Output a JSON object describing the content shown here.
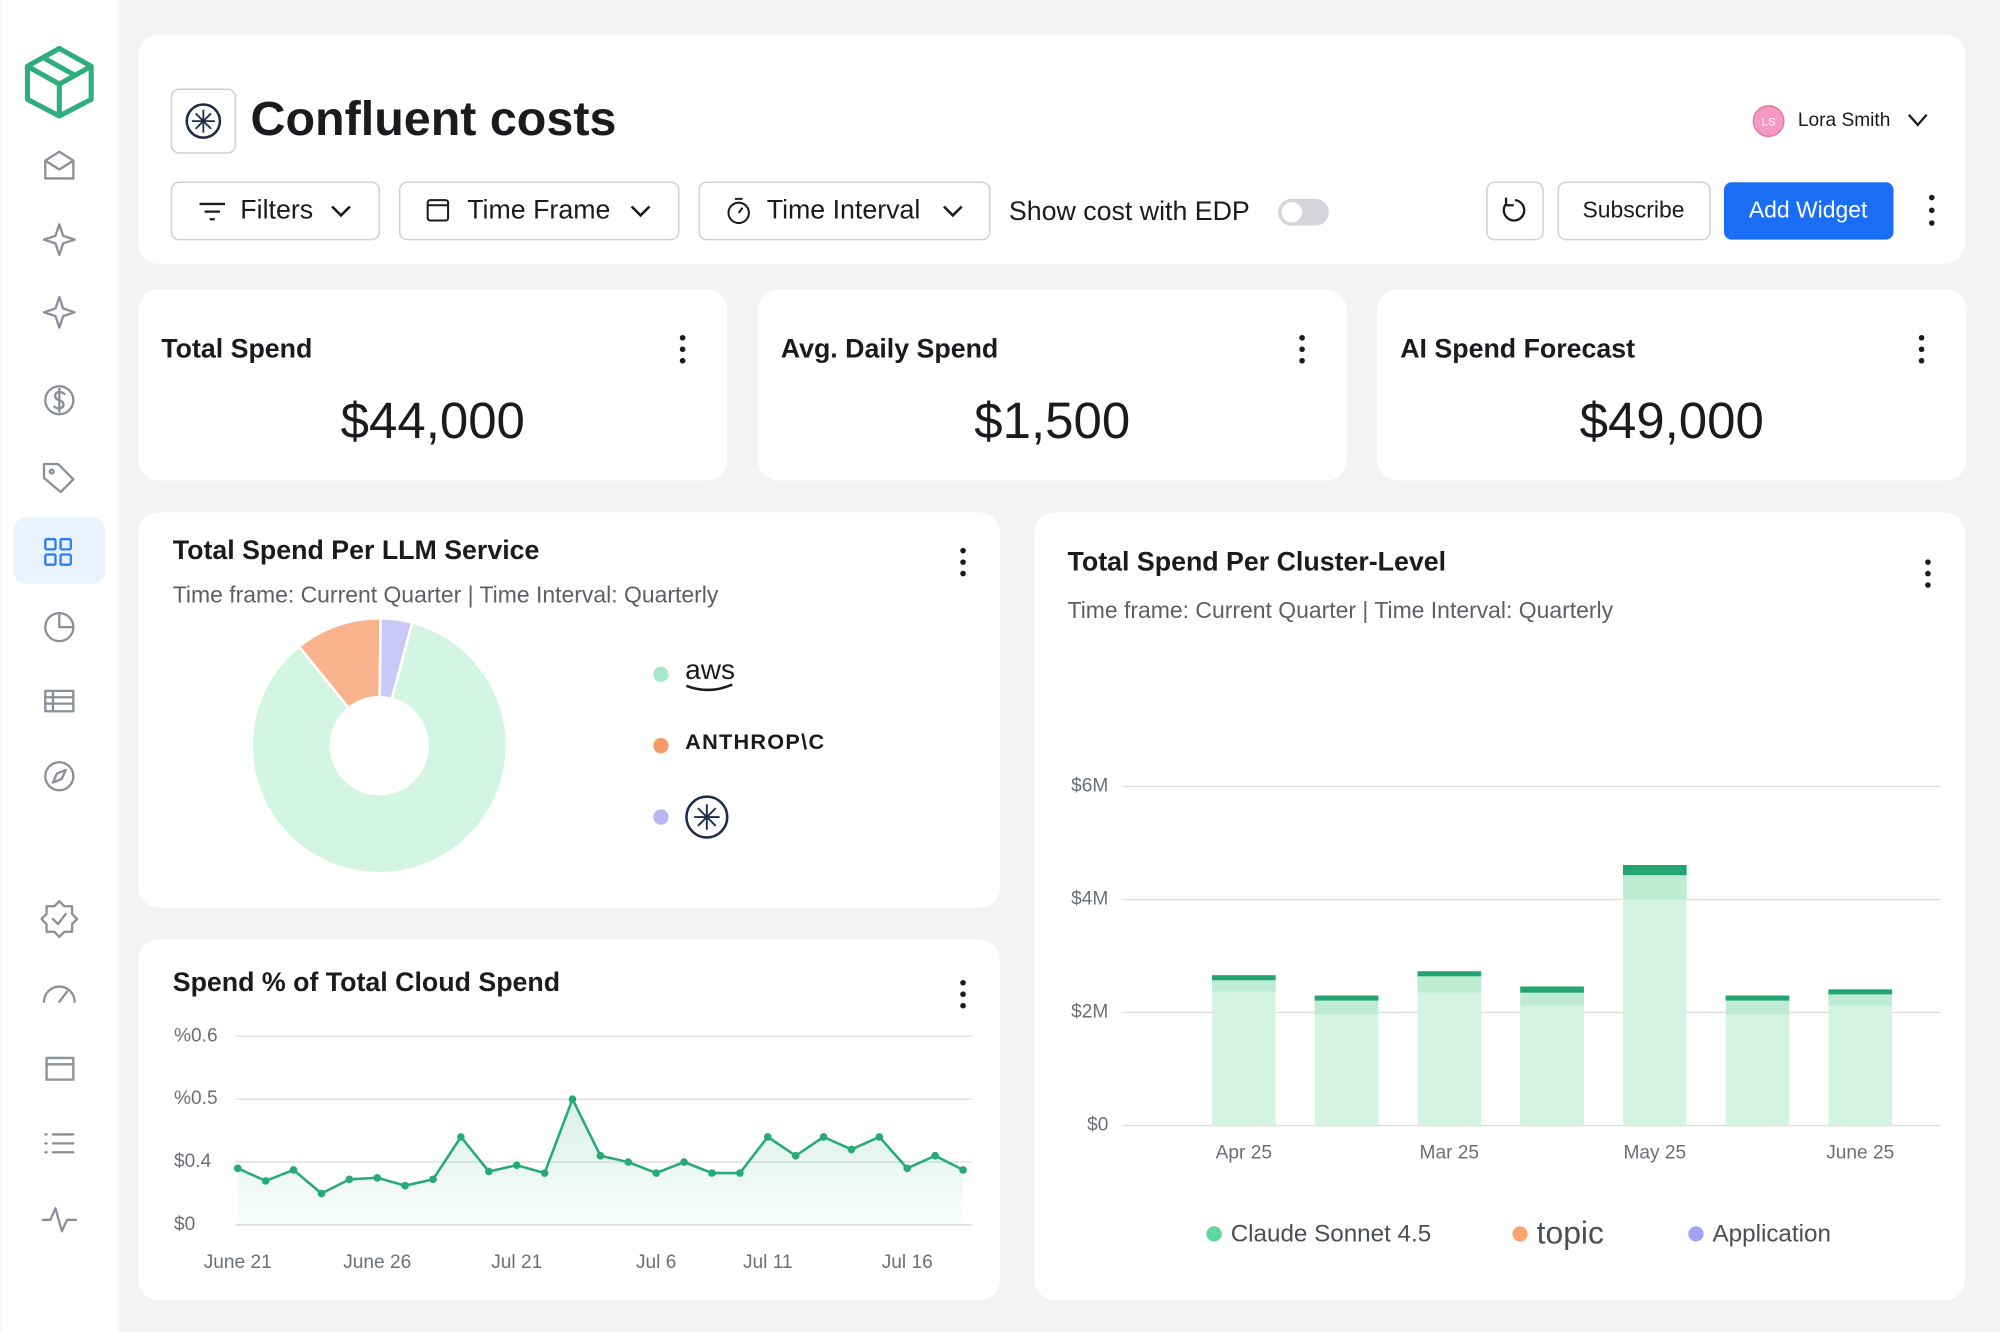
{
  "header": {
    "title": "Confluent costs",
    "user": {
      "initials": "LS",
      "name": "Lora Smith"
    }
  },
  "toolbar": {
    "filters": "Filters",
    "time_frame": "Time Frame",
    "time_interval": "Time Interval",
    "edp_toggle": "Show cost with EDP",
    "subscribe": "Subscribe",
    "add_widget": "Add Widget"
  },
  "kpis": [
    {
      "label": "Total Spend",
      "value": "$44,000"
    },
    {
      "label": "Avg. Daily Spend",
      "value": "$1,500"
    },
    {
      "label": "AI Spend Forecast",
      "value": "$49,000"
    }
  ],
  "chart_data": [
    {
      "type": "pie",
      "title": "Total Spend Per LLM Service",
      "subtitle": "Time frame: Current Quarter | Time Interval: Quarterly",
      "categories": [
        "aws",
        "ANTHROP\\C",
        null
      ],
      "values": [
        85,
        11,
        4
      ],
      "colors": [
        "#d4f4e4",
        "#f9b48e",
        "#c9c8f7"
      ],
      "legend_colors": [
        "#a5ebcb",
        "#f79a6a",
        "#b7b6f3"
      ]
    },
    {
      "type": "line",
      "title": "Spend % of Total Cloud Spend",
      "categories": [
        "June 21",
        null,
        null,
        null,
        null,
        "June 26",
        null,
        null,
        null,
        null,
        "Jul 21",
        null,
        null,
        null,
        null,
        "Jul 6",
        null,
        null,
        null,
        "Jul 11",
        null,
        null,
        null,
        null,
        "Jul 16",
        null,
        null
      ],
      "values": [
        0.36,
        0.28,
        0.35,
        0.2,
        0.29,
        0.3,
        0.25,
        0.29,
        0.44,
        0.34,
        0.38,
        0.33,
        0.5,
        0.41,
        0.4,
        0.33,
        0.4,
        0.33,
        0.33,
        0.44,
        0.41,
        0.44,
        0.42,
        0.44,
        0.36,
        0.41,
        0.35
      ],
      "color": "#27a978",
      "ylim": [
        0,
        0.6
      ],
      "yticks": [
        {
          "value": 0,
          "label": "$0"
        },
        {
          "value": 0.4,
          "label": "$0.4"
        },
        {
          "value": 0.5,
          "label": "%0.5"
        },
        {
          "value": 0.6,
          "label": "%0.6"
        }
      ],
      "grid": true
    },
    {
      "type": "bar",
      "stacked": true,
      "title": "Total Spend Per Cluster-Level",
      "subtitle": "Time frame: Current Quarter | Time Interval: Quarterly",
      "categories": [
        "Apr 25",
        null,
        "Mar 25",
        null,
        "May 25",
        null,
        "June 25"
      ],
      "series": [
        {
          "name": "Claude Sonnet 4.5",
          "color": "#d5f3e3",
          "legend_color": "#5fd5a0",
          "values": [
            2370000,
            1960000,
            2350000,
            2120000,
            4000000,
            1960000,
            2120000
          ]
        },
        {
          "name": "topic",
          "color": "#bdebd3",
          "legend_color": "#f9a46f",
          "values": [
            200000,
            250000,
            290000,
            230000,
            430000,
            250000,
            200000
          ]
        },
        {
          "name": "Application",
          "color": "#22a572",
          "legend_color": "#a3a2f2",
          "values": [
            90000,
            90000,
            90000,
            110000,
            180000,
            90000,
            90000
          ]
        }
      ],
      "ylim": [
        0,
        6000000
      ],
      "yticks": [
        {
          "value": 0,
          "label": "$0"
        },
        {
          "value": 2000000,
          "label": "$2M"
        },
        {
          "value": 4000000,
          "label": "$4M"
        },
        {
          "value": 6000000,
          "label": "$6M"
        }
      ],
      "grid": true
    }
  ]
}
